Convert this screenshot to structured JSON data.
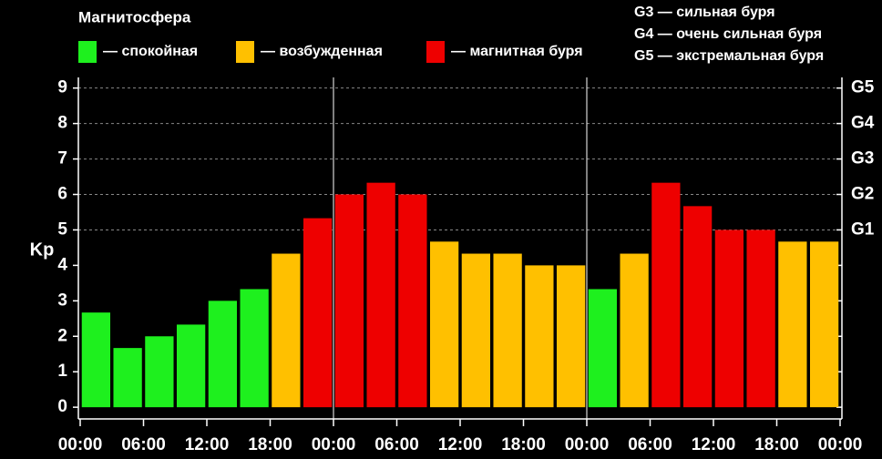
{
  "chart_data": {
    "type": "bar",
    "title": "Магнитосфера",
    "y_label": "Kp",
    "legend": [
      {
        "label": "— спокойная",
        "color": "#1ef01e"
      },
      {
        "label": "— возбужденная",
        "color": "#ffc000"
      },
      {
        "label": "— магнитная буря",
        "color": "#ee0000"
      }
    ],
    "notes": [
      "G3 — сильная буря",
      "G4 — очень сильная буря",
      "G5 — экстремальная буря"
    ],
    "x": [
      1.5,
      4.5,
      7.5,
      10.5,
      13.5,
      16.5,
      19.5,
      22.5,
      25.5,
      28.5,
      31.5,
      34.5,
      37.5,
      40.5,
      43.5,
      46.5,
      49.5,
      52.5,
      55.5,
      58.5,
      61.5,
      64.5,
      67.5,
      70.5
    ],
    "values": [
      2.67,
      1.67,
      2,
      2.33,
      3,
      3.33,
      4.33,
      5.33,
      6,
      6.33,
      6,
      4.67,
      4.33,
      4.33,
      4,
      4,
      3.33,
      4.33,
      6.33,
      5.67,
      5,
      5,
      4.67,
      4.67
    ],
    "colors": [
      "#1ef01e",
      "#1ef01e",
      "#1ef01e",
      "#1ef01e",
      "#1ef01e",
      "#1ef01e",
      "#ffc000",
      "#ee0000",
      "#ee0000",
      "#ee0000",
      "#ee0000",
      "#ffc000",
      "#ffc000",
      "#ffc000",
      "#ffc000",
      "#ffc000",
      "#1ef01e",
      "#ffc000",
      "#ee0000",
      "#ee0000",
      "#ee0000",
      "#ee0000",
      "#ffc000",
      "#ffc000"
    ],
    "bar_width": 2.7,
    "xlim": [
      0,
      72
    ],
    "xticks": [
      {
        "value": 0,
        "label": "00:00"
      },
      {
        "value": 6,
        "label": "06:00"
      },
      {
        "value": 12,
        "label": "12:00"
      },
      {
        "value": 18,
        "label": "18:00"
      },
      {
        "value": 24,
        "label": "00:00"
      },
      {
        "value": 30,
        "label": "06:00"
      },
      {
        "value": 36,
        "label": "12:00"
      },
      {
        "value": 42,
        "label": "18:00"
      },
      {
        "value": 48,
        "label": "00:00"
      },
      {
        "value": 54,
        "label": "06:00"
      },
      {
        "value": 60,
        "label": "12:00"
      },
      {
        "value": 66,
        "label": "18:00"
      },
      {
        "value": 72,
        "label": "00:00"
      }
    ],
    "day_lines": [
      24,
      48
    ],
    "ylim": [
      -0.33,
      9.3
    ],
    "yticks": [
      0,
      1,
      2,
      3,
      4,
      5,
      6,
      7,
      8,
      9
    ],
    "y2lim": [
      -0.33,
      9.3
    ],
    "y2ticks": [
      {
        "value": 5,
        "label": "G1"
      },
      {
        "value": 6,
        "label": "G2"
      },
      {
        "value": 7,
        "label": "G3"
      },
      {
        "value": 8,
        "label": "G4"
      },
      {
        "value": 9,
        "label": "G5"
      }
    ],
    "grid": true
  }
}
